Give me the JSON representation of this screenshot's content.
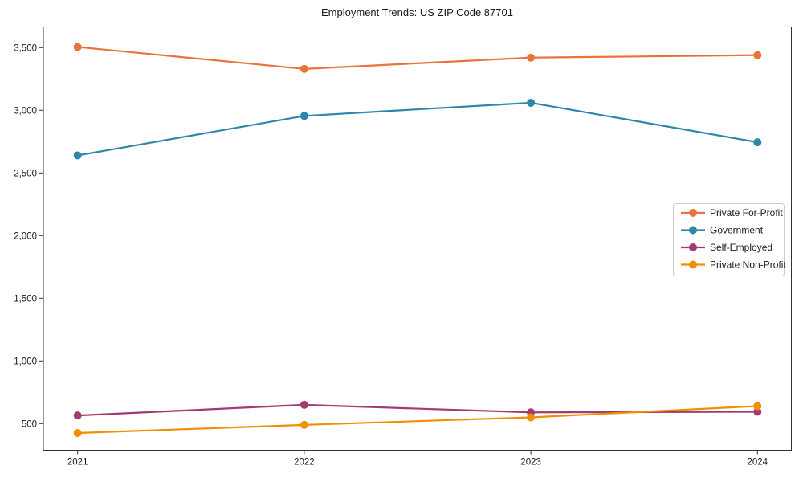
{
  "title": "Employment Trends: US ZIP Code 87701",
  "colors": {
    "axis": "#333333",
    "tick_label": "#1a1a1a",
    "legend_border": "#cccccc",
    "legend_background": "#ffffff",
    "private_for_profit": "#E8743B",
    "government": "#2E86AB",
    "self_employed": "#A23B72",
    "private_non_profit": "#F18F01"
  },
  "chart_data": {
    "type": "line",
    "title": "Employment Trends: US ZIP Code 87701",
    "x": [
      2021,
      2022,
      2023,
      2024
    ],
    "x_tick_labels": [
      "2021",
      "2022",
      "2023",
      "2024"
    ],
    "y_ticks": {
      "values": [
        500,
        1000,
        1500,
        2000,
        2500,
        3000,
        3500
      ],
      "labels": [
        "500",
        "1,000",
        "1,500",
        "2,000",
        "2,500",
        "3,000",
        "3,500"
      ]
    },
    "ylim": [
      286,
      3665
    ],
    "grid": false,
    "legend_position": "right-middle",
    "marker": "circle",
    "series": [
      {
        "name": "Private For-Profit",
        "color": "#E8743B",
        "values": [
          3505,
          3330,
          3420,
          3440
        ]
      },
      {
        "name": "Government",
        "color": "#2E86AB",
        "values": [
          2640,
          2955,
          3060,
          2745
        ]
      },
      {
        "name": "Self-Employed",
        "color": "#A23B72",
        "values": [
          565,
          650,
          590,
          595
        ]
      },
      {
        "name": "Private Non-Profit",
        "color": "#F18F01",
        "values": [
          425,
          490,
          550,
          640
        ]
      }
    ]
  }
}
